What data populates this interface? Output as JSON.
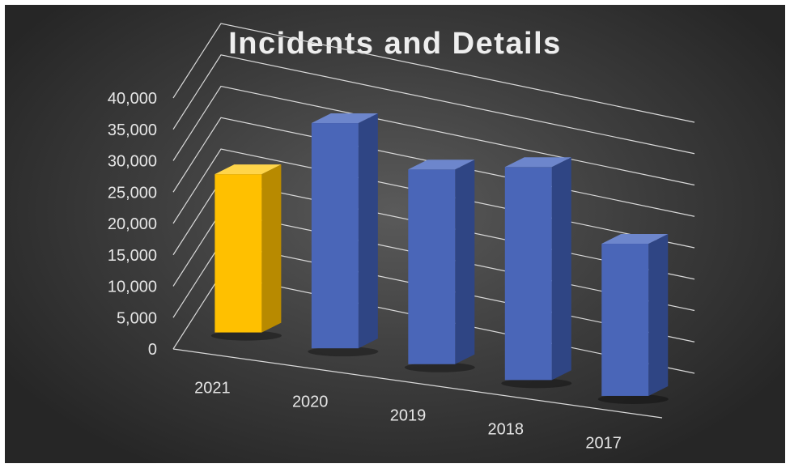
{
  "chart_data": {
    "type": "bar",
    "title": "Incidents and Details",
    "categories": [
      "2021",
      "2020",
      "2019",
      "2018",
      "2017"
    ],
    "values": [
      26000,
      37000,
      32000,
      35000,
      25000
    ],
    "ylim": [
      0,
      40000
    ],
    "yticks": [
      "0",
      "5,000",
      "10,000",
      "15,000",
      "20,000",
      "25,000",
      "30,000",
      "35,000",
      "40,000"
    ],
    "grid": true,
    "legend": "none",
    "colors": {
      "highlight_front": "#ffc000",
      "highlight_side": "#b88a00",
      "highlight_top": "#ffd54a",
      "bar_front": "#4a66b8",
      "bar_side": "#2f4584",
      "bar_top": "#6d86cc",
      "gridline": "#d9d9d9"
    },
    "highlight_index": 0
  }
}
